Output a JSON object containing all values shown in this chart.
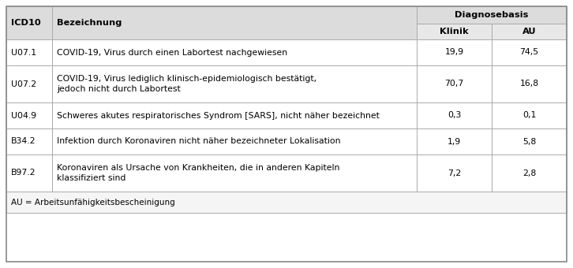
{
  "header_bg": "#dcdcdc",
  "subheader_bg": "#e8e8e8",
  "row_bg": "#ffffff",
  "footer_bg": "#f5f5f5",
  "border_color": "#aaaaaa",
  "text_color": "#000000",
  "diagnosebasis_label": "Diagnosebasis",
  "rows": [
    {
      "icd": "U07.1",
      "bezeichnung_lines": [
        "COVID-19, Virus durch einen Labortest nachgewiesen"
      ],
      "klinik": "19,9",
      "au": "74,5"
    },
    {
      "icd": "U07.2",
      "bezeichnung_lines": [
        "COVID-19, Virus lediglich klinisch-epidemiologisch bestätigt,",
        "jedoch nicht durch Labortest"
      ],
      "klinik": "70,7",
      "au": "16,8"
    },
    {
      "icd": "U04.9",
      "bezeichnung_lines": [
        "Schweres akutes respiratorisches Syndrom [SARS], nicht näher bezeichnet"
      ],
      "klinik": "0,3",
      "au": "0,1"
    },
    {
      "icd": "B34.2",
      "bezeichnung_lines": [
        "Infektion durch Koronaviren nicht näher bezeichneter Lokalisation"
      ],
      "klinik": "1,9",
      "au": "5,8"
    },
    {
      "icd": "B97.2",
      "bezeichnung_lines": [
        "Koronaviren als Ursache von Krankheiten, die in anderen Kapiteln",
        "klassifiziert sind"
      ],
      "klinik": "7,2",
      "au": "2,8"
    }
  ],
  "footer_text": "AU = Arbeitsunfähigkeitsbescheinigung",
  "font_size": 7.8,
  "header_font_size": 8.2
}
